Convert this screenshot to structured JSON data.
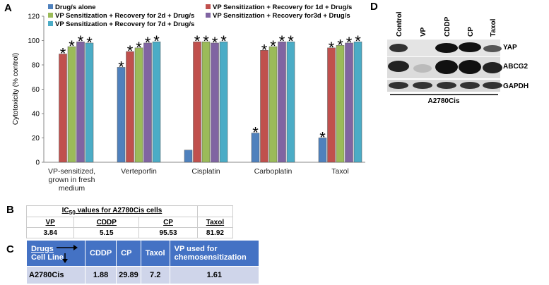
{
  "chart_data": {
    "type": "bar",
    "panel_label": "A",
    "ylabel": "Cytotoxicity (% control)",
    "categories": [
      "VP-sensitized, grown in fresh medium",
      "Verteporfin",
      "Cisplatin",
      "Carboplatin",
      "Taxol"
    ],
    "series": [
      {
        "name": "Drug/s alone",
        "color": "#4f81bd",
        "values": [
          null,
          78,
          10,
          24,
          20
        ],
        "significant": [
          false,
          true,
          false,
          true,
          true
        ]
      },
      {
        "name": "VP Sensitization + Recovery for 1d + Drug/s",
        "color": "#c0504d",
        "values": [
          89,
          91,
          99,
          92,
          94
        ],
        "significant": [
          true,
          true,
          true,
          true,
          true
        ]
      },
      {
        "name": "VP Sensitization + Recovery for 2d + Drug/s",
        "color": "#9bbb59",
        "values": [
          95,
          94,
          99,
          95,
          96
        ],
        "significant": [
          true,
          true,
          true,
          true,
          true
        ]
      },
      {
        "name": "VP Sensitization + Recovery for3d + Drug/s",
        "color": "#8064a2",
        "values": [
          99,
          98,
          98,
          99,
          98
        ],
        "significant": [
          true,
          true,
          true,
          true,
          true
        ]
      },
      {
        "name": "VP Sensitization + Recovery for 7d + Drug/s",
        "color": "#4bacc6",
        "values": [
          98,
          99,
          99,
          99,
          99
        ],
        "significant": [
          true,
          true,
          true,
          true,
          true
        ]
      }
    ],
    "significance_marker": "*",
    "ylim": [
      0,
      120
    ],
    "yticks": [
      0,
      20,
      40,
      60,
      80,
      100,
      120
    ],
    "grid": false
  },
  "table_b": {
    "panel_label": "B",
    "title_prefix": "IC",
    "title_subscript": "50",
    "title_rest": " values for A2780Cis cells",
    "headers": [
      "VP",
      "CDDP",
      "CP",
      "Taxol"
    ],
    "values": [
      3.84,
      5.15,
      95.53,
      81.92
    ]
  },
  "table_c": {
    "panel_label": "C",
    "corner_top": "Drugs",
    "corner_bottom": "Cell Line",
    "headers": [
      "CDDP",
      "CP",
      "Taxol",
      "VP used for chemosensitization"
    ],
    "row_label": "A2780Cis",
    "values": [
      1.88,
      29.89,
      7.2,
      1.61
    ]
  },
  "blot": {
    "panel_label": "D",
    "lanes": [
      "Control",
      "VP",
      "CDDP",
      "CP",
      "Taxol"
    ],
    "proteins": [
      "YAP",
      "ABCG2",
      "GAPDH"
    ],
    "cell_line": "A2780Cis"
  }
}
